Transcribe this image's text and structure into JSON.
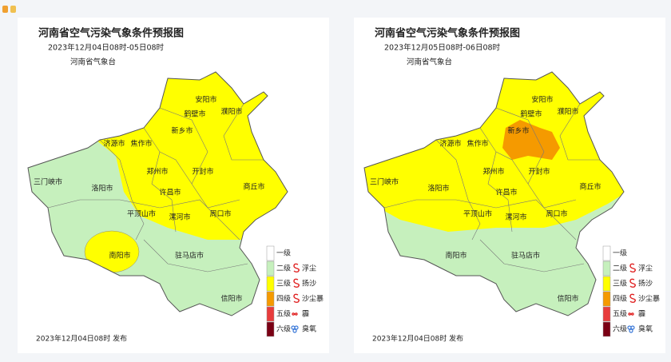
{
  "maps": [
    {
      "title": "河南省空气污染气象条件预报图",
      "time": "2023年12月04日08时-05日08时",
      "issuer": "河南省气象台",
      "footer": "2023年12月04日08时 发布"
    },
    {
      "title": "河南省空气污染气象条件预报图",
      "time": "2023年12月05日08时-06日08时",
      "issuer": "河南省气象台",
      "footer": "2023年12月04日08时 发布"
    }
  ],
  "cities": [
    "安阳市",
    "濮阳市",
    "鹤壁市",
    "新乡市",
    "济源市",
    "焦作市",
    "郑州市",
    "开封市",
    "三门峡市",
    "洛阳市",
    "许昌市",
    "商丘市",
    "平顶山市",
    "漯河市",
    "周口市",
    "南阳市",
    "驻马店市",
    "信阳市"
  ],
  "legend": {
    "levels": [
      "一级",
      "二级",
      "三级",
      "四级",
      "五级",
      "六级"
    ],
    "phenomena": [
      "浮尘",
      "扬沙",
      "沙尘暴",
      "霾",
      "臭氧"
    ]
  }
}
